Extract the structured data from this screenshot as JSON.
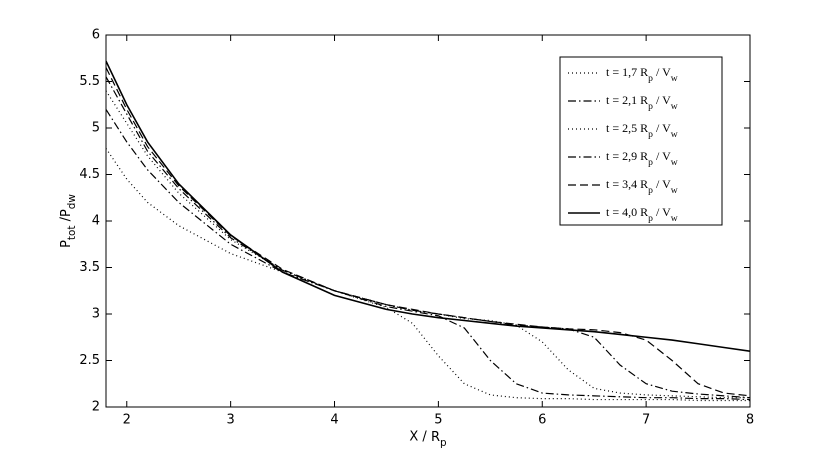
{
  "chart_data": {
    "type": "line",
    "xlabel": "X / Rp",
    "ylabel": "Ptot /Pdw",
    "x": [
      1.8,
      2,
      2.2,
      2.5,
      3,
      3.5,
      4,
      4.5,
      4.75,
      5,
      5.25,
      5.5,
      5.75,
      6,
      6.25,
      6.5,
      6.75,
      7,
      7.25,
      7.5,
      7.75,
      8
    ],
    "series": [
      {
        "name": "t = 1,7 Rp / Vw",
        "color": "#000000",
        "linestyle": "dotted",
        "values": [
          4.78,
          4.45,
          4.2,
          3.95,
          3.65,
          3.45,
          3.25,
          3.07,
          2.9,
          2.55,
          2.25,
          2.13,
          2.1,
          2.09,
          2.09,
          2.08,
          2.08,
          2.08,
          2.08,
          2.07,
          2.07,
          2.07
        ]
      },
      {
        "name": "t = 2,1 Rp / Vw",
        "color": "#000000",
        "linestyle": "dashdot",
        "values": [
          5.2,
          4.85,
          4.55,
          4.2,
          3.75,
          3.45,
          3.25,
          3.08,
          3.03,
          2.98,
          2.85,
          2.5,
          2.25,
          2.15,
          2.13,
          2.12,
          2.11,
          2.1,
          2.1,
          2.09,
          2.09,
          2.08
        ]
      },
      {
        "name": "t = 2,5 Rp / Vw",
        "color": "#000000",
        "linestyle": "dotted",
        "values": [
          5.4,
          5.05,
          4.7,
          4.3,
          3.8,
          3.47,
          3.25,
          3.1,
          3.04,
          3.0,
          2.95,
          2.93,
          2.88,
          2.7,
          2.4,
          2.2,
          2.15,
          2.13,
          2.12,
          2.11,
          2.1,
          2.1
        ]
      },
      {
        "name": "t = 2,9 Rp / Vw",
        "color": "#000000",
        "linestyle": "dashdot",
        "values": [
          5.55,
          5.15,
          4.75,
          4.35,
          3.82,
          3.47,
          3.25,
          3.1,
          3.04,
          3.0,
          2.96,
          2.92,
          2.88,
          2.86,
          2.84,
          2.75,
          2.45,
          2.25,
          2.17,
          2.14,
          2.12,
          2.1
        ]
      },
      {
        "name": "t = 3,4 Rp / Vw",
        "color": "#000000",
        "linestyle": "dashed",
        "values": [
          5.65,
          5.2,
          4.8,
          4.38,
          3.84,
          3.48,
          3.25,
          3.1,
          3.05,
          3.0,
          2.96,
          2.92,
          2.89,
          2.86,
          2.84,
          2.83,
          2.8,
          2.72,
          2.5,
          2.25,
          2.15,
          2.12
        ]
      },
      {
        "name": "t = 4,0 Rp / Vw",
        "color": "#000000",
        "linestyle": "solid",
        "values": [
          5.72,
          5.25,
          4.85,
          4.4,
          3.85,
          3.45,
          3.2,
          3.05,
          3.0,
          2.96,
          2.93,
          2.9,
          2.87,
          2.85,
          2.83,
          2.81,
          2.78,
          2.75,
          2.72,
          2.68,
          2.64,
          2.6
        ]
      }
    ],
    "xlim": [
      1.8,
      8
    ],
    "xticks": [
      2,
      3,
      4,
      5,
      6,
      7,
      8
    ],
    "ylim": [
      2,
      6
    ],
    "yticks": [
      2,
      2.5,
      3,
      3.5,
      4,
      4.5,
      5,
      5.5,
      6
    ],
    "grid": false,
    "legend": "northeast"
  }
}
